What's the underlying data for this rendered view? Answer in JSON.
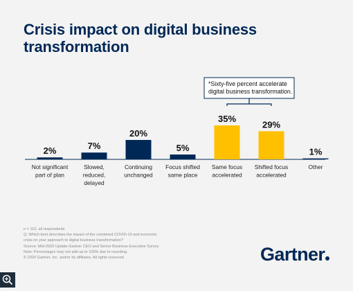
{
  "title": "Crisis impact on digital business transformation",
  "chart_data": {
    "type": "bar",
    "categories": [
      [
        "Not significant",
        "part of plan"
      ],
      [
        "Slowed,",
        "reduced,",
        "delayed"
      ],
      [
        "Continuing",
        "unchanged"
      ],
      [
        "Focus shifted",
        "same place"
      ],
      [
        "Same focus",
        "accelerated"
      ],
      [
        "Shifted focus",
        "accelerated"
      ],
      [
        "Other"
      ]
    ],
    "values": [
      2,
      7,
      20,
      5,
      35,
      29,
      1
    ],
    "value_labels": [
      "2%",
      "7%",
      "20%",
      "5%",
      "35%",
      "29%",
      "1%"
    ],
    "highlight": [
      false,
      false,
      false,
      false,
      true,
      true,
      false
    ],
    "colors": {
      "default": "#002856",
      "highlight": "#ffc000",
      "bracket": "#002856"
    },
    "ylim": [
      0,
      35
    ],
    "annotation": [
      "*Sixty-five percent accelerate",
      "digital business transformation."
    ]
  },
  "footnotes": [
    "n = 110, all respondents",
    "Q: Which best describes the impact of the combined COVID-19 and economic",
    "crisis on your approach to digital business transformation?",
    "Source: Mid-2020 Update Gartner CEO and Senior Business Executive Survey",
    "Note: Percentages may not add up to 100% due to rounding.",
    "© 2020 Gartner, Inc. and/or its affiliates. All rights reserved."
  ],
  "logo": "Gartner",
  "zoom_icon": "zoom-in-icon"
}
